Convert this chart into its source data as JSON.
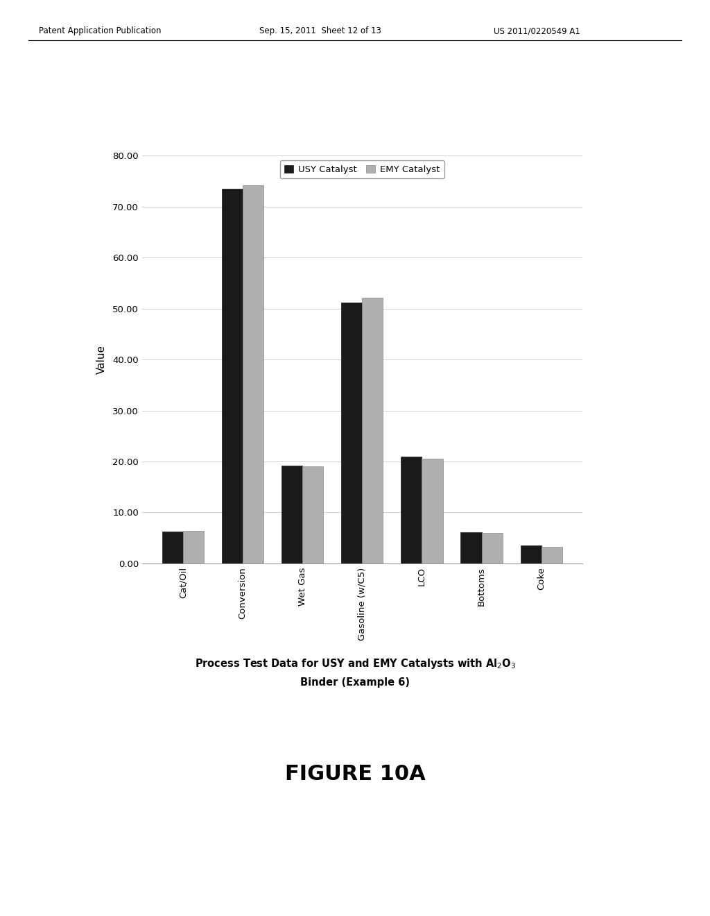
{
  "categories": [
    "Cat/Oil",
    "Conversion",
    "Wet Gas",
    "Gasoline (w/C5)",
    "LCO",
    "Bottoms",
    "Coke"
  ],
  "usy_values": [
    6.2,
    73.5,
    19.2,
    51.2,
    21.0,
    6.1,
    3.5
  ],
  "emy_values": [
    6.4,
    74.2,
    19.0,
    52.2,
    20.5,
    6.0,
    3.3
  ],
  "usy_color": "#1a1a1a",
  "emy_color": "#b0b0b0",
  "ylabel": "Value",
  "ylim": [
    0,
    80
  ],
  "yticks": [
    0.0,
    10.0,
    20.0,
    30.0,
    40.0,
    50.0,
    60.0,
    70.0,
    80.0
  ],
  "legend_labels": [
    "USY Catalyst",
    "EMY Catalyst"
  ],
  "caption_line1": "Process Test Data for USY and EMY Catalysts with Al$_2$O$_3$",
  "caption_line2": "Binder (Example 6)",
  "figure_label": "FIGURE 10A",
  "header_left": "Patent Application Publication",
  "header_mid": "Sep. 15, 2011  Sheet 12 of 13",
  "header_right": "US 2011/0220549 A1",
  "bar_width": 0.35,
  "background_color": "#ffffff"
}
